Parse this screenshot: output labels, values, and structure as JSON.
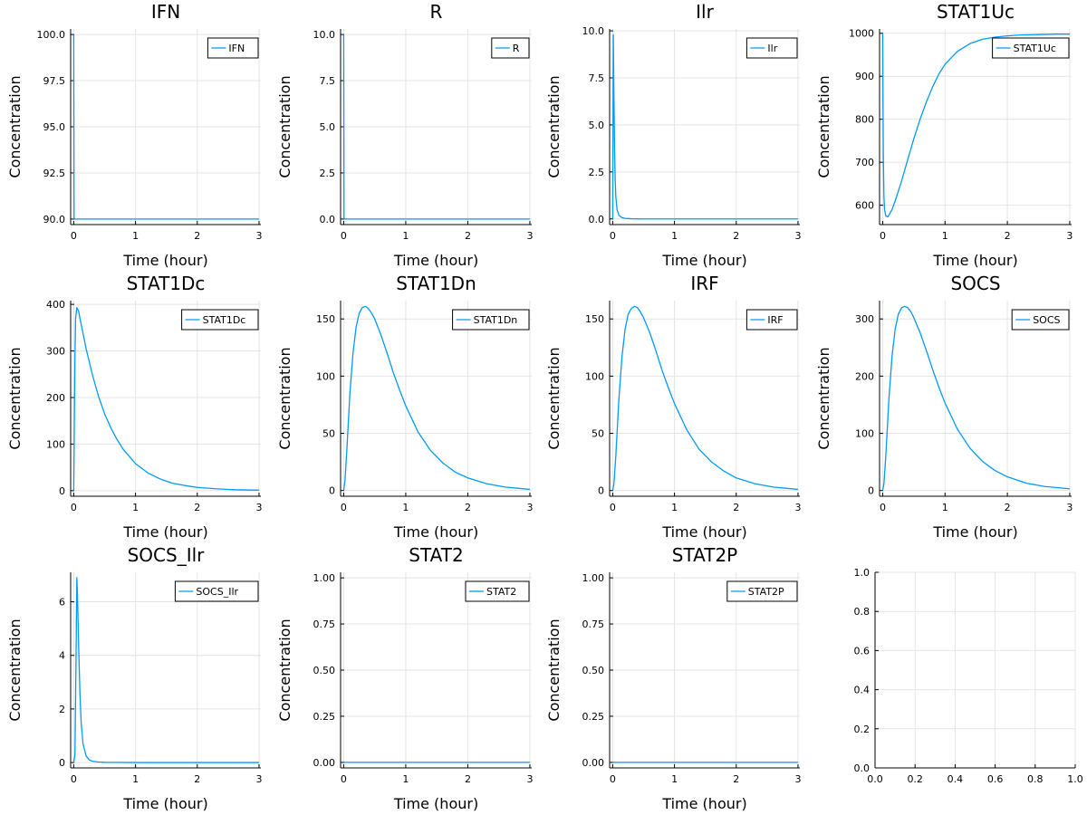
{
  "chart_data": [
    {
      "type": "line",
      "title": "IFN",
      "xlabel": "Time (hour)",
      "ylabel": "Concentration",
      "xlim": [
        -0.05,
        3.03
      ],
      "ylim": [
        89.7,
        100.3
      ],
      "xticks": [
        0,
        1,
        2,
        3
      ],
      "xtick_labels": [
        "0",
        "1",
        "2",
        "3"
      ],
      "yticks": [
        90,
        92.5,
        95,
        97.5,
        100
      ],
      "ytick_labels": [
        "90.0",
        "92.5",
        "95.0",
        "97.5",
        "100.0"
      ],
      "legend": "top-right",
      "series": [
        {
          "name": "IFN",
          "x": [
            0,
            0.005,
            0.01,
            0.02,
            0.05,
            0.5,
            1,
            2,
            3
          ],
          "y": [
            100,
            90.1,
            90.02,
            90,
            90,
            90,
            90,
            90,
            90
          ]
        }
      ]
    },
    {
      "type": "line",
      "title": "R",
      "xlabel": "Time (hour)",
      "ylabel": "Concentration",
      "xlim": [
        -0.05,
        3.03
      ],
      "ylim": [
        -0.3,
        10.3
      ],
      "xticks": [
        0,
        1,
        2,
        3
      ],
      "xtick_labels": [
        "0",
        "1",
        "2",
        "3"
      ],
      "yticks": [
        0,
        2.5,
        5,
        7.5,
        10
      ],
      "ytick_labels": [
        "0.0",
        "2.5",
        "5.0",
        "7.5",
        "10.0"
      ],
      "legend": "top-right",
      "series": [
        {
          "name": "R",
          "x": [
            0,
            0.005,
            0.01,
            0.02,
            0.05,
            0.5,
            1,
            2,
            3
          ],
          "y": [
            10,
            0.1,
            0.02,
            0,
            0,
            0,
            0,
            0,
            0
          ]
        }
      ]
    },
    {
      "type": "line",
      "title": "Ilr",
      "xlabel": "Time (hour)",
      "ylabel": "Concentration",
      "xlim": [
        -0.05,
        3.03
      ],
      "ylim": [
        -0.3,
        10.1
      ],
      "xticks": [
        0,
        1,
        2,
        3
      ],
      "xtick_labels": [
        "0",
        "1",
        "2",
        "3"
      ],
      "yticks": [
        0,
        2.5,
        5,
        7.5,
        10
      ],
      "ytick_labels": [
        "0.0",
        "2.5",
        "5.0",
        "7.5",
        "10.0"
      ],
      "legend": "top-right",
      "series": [
        {
          "name": "Ilr",
          "x": [
            0,
            0.01,
            0.02,
            0.03,
            0.04,
            0.05,
            0.07,
            0.1,
            0.15,
            0.2,
            0.3,
            0.5,
            1,
            2,
            3
          ],
          "y": [
            0,
            9.8,
            6.5,
            3.8,
            2.1,
            1.2,
            0.5,
            0.2,
            0.07,
            0.03,
            0.01,
            0,
            0,
            0,
            0
          ]
        }
      ]
    },
    {
      "type": "line",
      "title": "STAT1Uc",
      "xlabel": "Time (hour)",
      "ylabel": "Concentration",
      "xlim": [
        -0.05,
        3.03
      ],
      "ylim": [
        555,
        1010
      ],
      "xticks": [
        0,
        1,
        2,
        3
      ],
      "xtick_labels": [
        "0",
        "1",
        "2",
        "3"
      ],
      "yticks": [
        600,
        700,
        800,
        900,
        1000
      ],
      "ytick_labels": [
        "600",
        "700",
        "800",
        "900",
        "1000"
      ],
      "legend": "top-right",
      "series": [
        {
          "name": "STAT1Uc",
          "x": [
            0,
            0.01,
            0.02,
            0.03,
            0.05,
            0.08,
            0.1,
            0.15,
            0.2,
            0.3,
            0.4,
            0.5,
            0.6,
            0.7,
            0.8,
            0.9,
            1,
            1.2,
            1.4,
            1.6,
            1.8,
            2,
            2.2,
            2.5,
            2.8,
            3
          ],
          "y": [
            1000,
            720,
            620,
            590,
            575,
            573,
            577,
            590,
            610,
            655,
            705,
            755,
            800,
            840,
            875,
            905,
            928,
            958,
            976,
            986,
            991,
            994,
            996,
            997,
            998,
            998
          ]
        }
      ]
    },
    {
      "type": "line",
      "title": "STAT1Dc",
      "xlabel": "Time (hour)",
      "ylabel": "Concentration",
      "xlim": [
        -0.05,
        3.03
      ],
      "ylim": [
        -12,
        408
      ],
      "xticks": [
        0,
        1,
        2,
        3
      ],
      "xtick_labels": [
        "0",
        "1",
        "2",
        "3"
      ],
      "yticks": [
        0,
        100,
        200,
        300,
        400
      ],
      "ytick_labels": [
        "0",
        "100",
        "200",
        "300",
        "400"
      ],
      "legend": "top-right",
      "series": [
        {
          "name": "STAT1Dc",
          "x": [
            0,
            0.01,
            0.02,
            0.03,
            0.05,
            0.08,
            0.1,
            0.15,
            0.2,
            0.3,
            0.4,
            0.5,
            0.6,
            0.7,
            0.8,
            1,
            1.2,
            1.4,
            1.6,
            1.8,
            2,
            2.3,
            2.6,
            3
          ],
          "y": [
            0,
            150,
            290,
            370,
            393,
            385,
            370,
            338,
            305,
            250,
            203,
            165,
            135,
            110,
            89,
            58,
            38,
            25,
            16,
            11,
            7,
            4,
            2,
            1
          ]
        }
      ]
    },
    {
      "type": "line",
      "title": "STAT1Dn",
      "xlabel": "Time (hour)",
      "ylabel": "Concentration",
      "xlim": [
        -0.05,
        3.03
      ],
      "ylim": [
        -5,
        166
      ],
      "xticks": [
        0,
        1,
        2,
        3
      ],
      "xtick_labels": [
        "0",
        "1",
        "2",
        "3"
      ],
      "yticks": [
        0,
        50,
        100,
        150
      ],
      "ytick_labels": [
        "0",
        "50",
        "100",
        "150"
      ],
      "legend": "top-right",
      "series": [
        {
          "name": "STAT1Dn",
          "x": [
            0,
            0.02,
            0.05,
            0.08,
            0.1,
            0.15,
            0.2,
            0.25,
            0.3,
            0.35,
            0.4,
            0.45,
            0.5,
            0.6,
            0.7,
            0.8,
            0.9,
            1,
            1.2,
            1.4,
            1.6,
            1.8,
            2,
            2.3,
            2.6,
            3
          ],
          "y": [
            0,
            8,
            35,
            65,
            85,
            120,
            143,
            155,
            160,
            161,
            159,
            155,
            150,
            136,
            120,
            103,
            88,
            74,
            51,
            35,
            24,
            16,
            11,
            6,
            3,
            1
          ]
        }
      ]
    },
    {
      "type": "line",
      "title": "IRF",
      "xlabel": "Time (hour)",
      "ylabel": "Concentration",
      "xlim": [
        -0.05,
        3.03
      ],
      "ylim": [
        -5,
        166
      ],
      "xticks": [
        0,
        1,
        2,
        3
      ],
      "xtick_labels": [
        "0",
        "1",
        "2",
        "3"
      ],
      "yticks": [
        0,
        50,
        100,
        150
      ],
      "ytick_labels": [
        "0",
        "50",
        "100",
        "150"
      ],
      "legend": "top-right",
      "series": [
        {
          "name": "IRF",
          "x": [
            0,
            0.02,
            0.05,
            0.08,
            0.1,
            0.15,
            0.2,
            0.25,
            0.3,
            0.35,
            0.4,
            0.45,
            0.5,
            0.6,
            0.7,
            0.8,
            0.9,
            1,
            1.2,
            1.4,
            1.6,
            1.8,
            2,
            2.3,
            2.6,
            3
          ],
          "y": [
            0,
            6,
            30,
            60,
            80,
            117,
            141,
            154,
            159,
            161,
            160,
            156,
            151,
            138,
            122,
            105,
            90,
            76,
            53,
            36,
            25,
            17,
            11,
            6,
            3,
            1
          ]
        }
      ]
    },
    {
      "type": "line",
      "title": "SOCS",
      "xlabel": "Time (hour)",
      "ylabel": "Concentration",
      "xlim": [
        -0.05,
        3.03
      ],
      "ylim": [
        -10,
        332
      ],
      "xticks": [
        0,
        1,
        2,
        3
      ],
      "xtick_labels": [
        "0",
        "1",
        "2",
        "3"
      ],
      "yticks": [
        0,
        100,
        200,
        300
      ],
      "ytick_labels": [
        "0",
        "100",
        "200",
        "300"
      ],
      "legend": "top-right",
      "series": [
        {
          "name": "SOCS",
          "x": [
            0,
            0.02,
            0.05,
            0.08,
            0.1,
            0.15,
            0.2,
            0.25,
            0.3,
            0.35,
            0.4,
            0.45,
            0.5,
            0.6,
            0.7,
            0.8,
            0.9,
            1,
            1.2,
            1.4,
            1.6,
            1.8,
            2,
            2.3,
            2.6,
            3
          ],
          "y": [
            0,
            12,
            60,
            120,
            160,
            235,
            282,
            308,
            319,
            322,
            320,
            313,
            302,
            276,
            245,
            212,
            181,
            153,
            107,
            74,
            51,
            35,
            24,
            13,
            7,
            3
          ]
        }
      ]
    },
    {
      "type": "line",
      "title": "SOCS_Ilr",
      "xlabel": "Time (hour)",
      "ylabel": "Concentration",
      "xlim": [
        -0.05,
        3.03
      ],
      "ylim": [
        -0.2,
        7.1
      ],
      "xticks": [
        0,
        1,
        2,
        3
      ],
      "xtick_labels": [
        "0",
        "1",
        "2",
        "3"
      ],
      "yticks": [
        0,
        2,
        4,
        6
      ],
      "ytick_labels": [
        "0",
        "2",
        "4",
        "6"
      ],
      "legend": "top-right",
      "series": [
        {
          "name": "SOCS_Ilr",
          "x": [
            0,
            0.02,
            0.04,
            0.05,
            0.06,
            0.08,
            0.1,
            0.12,
            0.15,
            0.2,
            0.25,
            0.3,
            0.4,
            0.5,
            1,
            2,
            3
          ],
          "y": [
            0,
            0.3,
            4.5,
            6.9,
            6.3,
            4.3,
            2.6,
            1.5,
            0.7,
            0.25,
            0.1,
            0.05,
            0.02,
            0.01,
            0,
            0,
            0
          ]
        }
      ]
    },
    {
      "type": "line",
      "title": "STAT2",
      "xlabel": "Time (hour)",
      "ylabel": "Concentration",
      "xlim": [
        -0.05,
        3.03
      ],
      "ylim": [
        -0.03,
        1.03
      ],
      "xticks": [
        0,
        1,
        2,
        3
      ],
      "xtick_labels": [
        "0",
        "1",
        "2",
        "3"
      ],
      "yticks": [
        0,
        0.25,
        0.5,
        0.75,
        1
      ],
      "ytick_labels": [
        "0.00",
        "0.25",
        "0.50",
        "0.75",
        "1.00"
      ],
      "legend": "top-right",
      "series": [
        {
          "name": "STAT2",
          "x": [
            0,
            3
          ],
          "y": [
            0,
            0
          ]
        }
      ]
    },
    {
      "type": "line",
      "title": "STAT2P",
      "xlabel": "Time (hour)",
      "ylabel": "Concentration",
      "xlim": [
        -0.05,
        3.03
      ],
      "ylim": [
        -0.03,
        1.03
      ],
      "xticks": [
        0,
        1,
        2,
        3
      ],
      "xtick_labels": [
        "0",
        "1",
        "2",
        "3"
      ],
      "yticks": [
        0,
        0.25,
        0.5,
        0.75,
        1
      ],
      "ytick_labels": [
        "0.00",
        "0.25",
        "0.50",
        "0.75",
        "1.00"
      ],
      "legend": "top-right",
      "series": [
        {
          "name": "STAT2P",
          "x": [
            0,
            3
          ],
          "y": [
            0,
            0
          ]
        }
      ]
    },
    {
      "type": "line",
      "title": "",
      "xlabel": "",
      "ylabel": "",
      "xlim": [
        0,
        1
      ],
      "ylim": [
        0,
        1
      ],
      "xticks": [
        0,
        0.2,
        0.4,
        0.6,
        0.8,
        1
      ],
      "xtick_labels": [
        "0.0",
        "0.2",
        "0.4",
        "0.6",
        "0.8",
        "1.0"
      ],
      "yticks": [
        0,
        0.2,
        0.4,
        0.6,
        0.8,
        1
      ],
      "ytick_labels": [
        "0.0",
        "0.2",
        "0.4",
        "0.6",
        "0.8",
        "1.0"
      ],
      "legend": "none",
      "series": []
    }
  ],
  "colors": {
    "line": "#009af9",
    "grid": "#e4e4e4",
    "axis": "#000000"
  }
}
